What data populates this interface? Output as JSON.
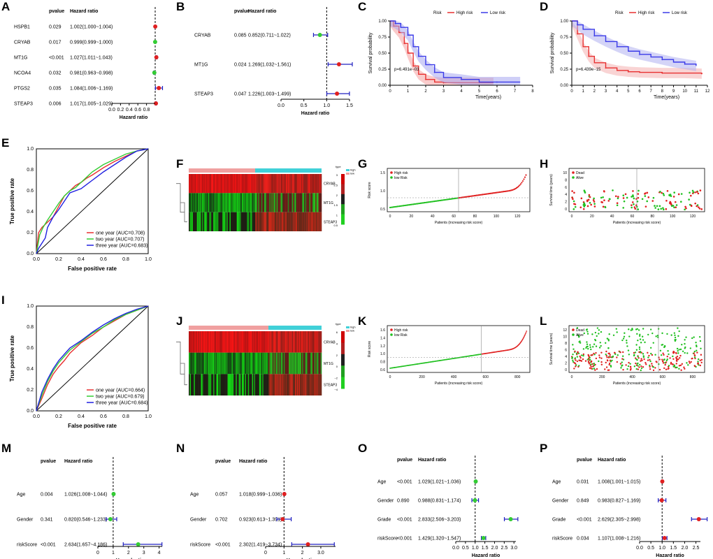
{
  "panels": {
    "A": "A",
    "B": "B",
    "C": "C",
    "D": "D",
    "E": "E",
    "F": "F",
    "G": "G",
    "H": "H",
    "I": "I",
    "J": "J",
    "K": "K",
    "L": "L",
    "M": "M",
    "N": "N",
    "O": "O",
    "P": "P"
  },
  "chart_data": [
    {
      "panel": "A",
      "type": "forest",
      "header_p": "pvalue",
      "header_hr": "Hazard ratio",
      "xlabel": "Hazard ratio",
      "xlim": [
        0,
        1.0
      ],
      "xticks": [
        "0.0",
        "0.2",
        "0.4",
        "0.6",
        "0.8"
      ],
      "ref": 1,
      "rows": [
        {
          "label": "HSPB1",
          "p": "0.029",
          "ci_text": "1.002(1.000~1.004)",
          "hr": 1.002,
          "lo": 1.0,
          "hi": 1.004,
          "color": "#e02020"
        },
        {
          "label": "CRYAB",
          "p": "0.017",
          "ci_text": "0.999(0.999~1.000)",
          "hr": 0.999,
          "lo": 0.999,
          "hi": 1.0,
          "color": "#33cc33"
        },
        {
          "label": "MT1G",
          "p": "<0.001",
          "ci_text": "1.027(1.011~1.043)",
          "hr": 1.027,
          "lo": 1.011,
          "hi": 1.043,
          "color": "#e02020"
        },
        {
          "label": "NCOA4",
          "p": "0.032",
          "ci_text": "0.981(0.963~0.998)",
          "hr": 0.981,
          "lo": 0.963,
          "hi": 0.998,
          "color": "#33cc33"
        },
        {
          "label": "PTGS2",
          "p": "0.035",
          "ci_text": "1.084(1.006~1.169)",
          "hr": 1.084,
          "lo": 1.006,
          "hi": 1.169,
          "color": "#e02020"
        },
        {
          "label": "STEAP3",
          "p": "0.006",
          "ci_text": "1.017(1.005~1.029)",
          "hr": 1.017,
          "lo": 1.005,
          "hi": 1.029,
          "color": "#e02020"
        }
      ]
    },
    {
      "panel": "B",
      "type": "forest",
      "header_p": "pvalue",
      "header_hr": "Hazard ratio",
      "xlabel": "Hazard ratio",
      "xlim": [
        0,
        1.5
      ],
      "xticks": [
        "0.0",
        "0.5",
        "1.0",
        "1.5"
      ],
      "ref": 1,
      "rows": [
        {
          "label": "CRYAB",
          "p": "0.085",
          "ci_text": "0.852(0.711~1.022)",
          "hr": 0.852,
          "lo": 0.711,
          "hi": 1.022,
          "color": "#33cc33"
        },
        {
          "label": "MT1G",
          "p": "0.024",
          "ci_text": "1.269(1.032~1.561)",
          "hr": 1.269,
          "lo": 1.032,
          "hi": 1.561,
          "color": "#e02020"
        },
        {
          "label": "STEAP3",
          "p": "0.047",
          "ci_text": "1.226(1.003~1.499)",
          "hr": 1.226,
          "lo": 1.003,
          "hi": 1.499,
          "color": "#e02020"
        }
      ]
    },
    {
      "panel": "C",
      "type": "survival",
      "legend_title": "Risk",
      "legend": [
        "High risk",
        "Low risk"
      ],
      "xlabel": "Time(years)",
      "ylabel": "Survival probability",
      "pvalue": "p=6.491e−03",
      "xlim": [
        0,
        8
      ],
      "ylim": [
        0,
        1
      ],
      "xticks": [
        "0",
        "1",
        "2",
        "3",
        "4",
        "5",
        "6",
        "7",
        "8"
      ],
      "yticks": [
        "0.00",
        "0.25",
        "0.50",
        "0.75",
        "1.00"
      ],
      "series": [
        {
          "name": "High risk",
          "color": "#e83030",
          "fill": "#f4a0a0",
          "x": [
            0,
            0.2,
            0.5,
            0.8,
            1.0,
            1.3,
            1.6,
            2.0,
            2.5,
            3.0,
            4.0,
            5.0,
            5.8
          ],
          "y": [
            1,
            0.92,
            0.82,
            0.65,
            0.5,
            0.3,
            0.17,
            0.09,
            0.05,
            0.04,
            0.04,
            0.04,
            0.04
          ]
        },
        {
          "name": "Low risk",
          "color": "#3a3ae8",
          "fill": "#a8a8f0",
          "x": [
            0,
            0.3,
            0.6,
            1.0,
            1.3,
            1.6,
            2.0,
            2.5,
            3.0,
            4.0,
            5.0,
            6.0,
            7.3
          ],
          "y": [
            1,
            0.96,
            0.9,
            0.78,
            0.6,
            0.45,
            0.32,
            0.2,
            0.12,
            0.09,
            0.05,
            0.05,
            0.05
          ]
        }
      ]
    },
    {
      "panel": "D",
      "type": "survival",
      "legend_title": "Risk",
      "legend": [
        "High risk",
        "Low risk"
      ],
      "xlabel": "Time(years)",
      "ylabel": "Survival probability",
      "pvalue": "p=6.439e−15",
      "xlim": [
        0,
        12
      ],
      "ylim": [
        0,
        1
      ],
      "xticks": [
        "0",
        "1",
        "2",
        "3",
        "4",
        "5",
        "6",
        "7",
        "8",
        "9",
        "10",
        "11",
        "12"
      ],
      "yticks": [
        "0.00",
        "0.25",
        "0.50",
        "0.75",
        "1.00"
      ],
      "series": [
        {
          "name": "High risk",
          "color": "#e83030",
          "fill": "#f4b0b0",
          "x": [
            0,
            0.5,
            1,
            1.5,
            2,
            3,
            4,
            5,
            6,
            8,
            10,
            11.5
          ],
          "y": [
            1,
            0.8,
            0.6,
            0.45,
            0.35,
            0.27,
            0.23,
            0.21,
            0.2,
            0.19,
            0.19,
            0.18
          ]
        },
        {
          "name": "Low risk",
          "color": "#3a3ae8",
          "fill": "#b0b0f0",
          "x": [
            0,
            0.5,
            1,
            2,
            3,
            4,
            5,
            6,
            7,
            8,
            9,
            10,
            11
          ],
          "y": [
            1,
            0.94,
            0.87,
            0.77,
            0.68,
            0.6,
            0.53,
            0.48,
            0.44,
            0.4,
            0.36,
            0.33,
            0.3
          ]
        }
      ]
    },
    {
      "panel": "E",
      "type": "roc",
      "xlabel": "False positive rate",
      "ylabel": "True positive rate",
      "ticks": [
        "0.0",
        "0.2",
        "0.4",
        "0.6",
        "0.8",
        "1.0"
      ],
      "series": [
        {
          "name": "one year (AUC=0.708)",
          "color": "#e83030",
          "x": [
            0,
            0.02,
            0.05,
            0.1,
            0.15,
            0.2,
            0.25,
            0.3,
            0.35,
            0.4,
            0.45,
            0.5,
            0.6,
            0.7,
            0.8,
            0.9,
            1
          ],
          "y": [
            0,
            0.2,
            0.25,
            0.3,
            0.35,
            0.45,
            0.55,
            0.6,
            0.65,
            0.68,
            0.72,
            0.75,
            0.82,
            0.88,
            0.93,
            0.98,
            1
          ]
        },
        {
          "name": "two year (AUC=0.707)",
          "color": "#33cc33",
          "x": [
            0,
            0.03,
            0.06,
            0.1,
            0.15,
            0.2,
            0.25,
            0.3,
            0.35,
            0.4,
            0.5,
            0.6,
            0.7,
            0.8,
            0.9,
            1
          ],
          "y": [
            0,
            0.18,
            0.25,
            0.32,
            0.4,
            0.48,
            0.55,
            0.6,
            0.63,
            0.68,
            0.78,
            0.85,
            0.9,
            0.95,
            0.98,
            1
          ]
        },
        {
          "name": "three year (AUC=0.683)",
          "color": "#2020e0",
          "x": [
            0,
            0.02,
            0.05,
            0.08,
            0.1,
            0.15,
            0.2,
            0.25,
            0.3,
            0.4,
            0.5,
            0.6,
            0.7,
            0.8,
            0.9,
            1
          ],
          "y": [
            0,
            0.05,
            0.1,
            0.15,
            0.25,
            0.35,
            0.42,
            0.5,
            0.58,
            0.62,
            0.7,
            0.78,
            0.85,
            0.92,
            0.98,
            1
          ]
        }
      ]
    },
    {
      "panel": "F",
      "type": "heatmap",
      "rows": [
        "CRYAB",
        "MT1G",
        "STEAP3"
      ],
      "legend_title": "type",
      "legend": [
        "high",
        "low"
      ],
      "scale": [
        "3",
        "2.5",
        "2",
        "1.5",
        "1",
        "0.5"
      ]
    },
    {
      "panel": "G",
      "type": "scatter",
      "legend": [
        "High risk",
        "low Risk"
      ],
      "xlabel": "Patients (increasing risk score)",
      "ylabel": "Risk score",
      "xticks": [
        "0",
        "20",
        "40",
        "60",
        "80",
        "100",
        "120"
      ],
      "yticks": [
        "0.5",
        "1.0",
        "1.5"
      ],
      "n": 130,
      "cut": 65
    },
    {
      "panel": "H",
      "type": "scatter",
      "legend": [
        "Dead",
        "Alive"
      ],
      "xlabel": "Patients (increasing risk score)",
      "ylabel": "Survival time (years)",
      "xticks": [
        "0",
        "20",
        "40",
        "60",
        "80",
        "100",
        "120"
      ],
      "yticks": [
        "0",
        "2",
        "4",
        "6",
        "8",
        "10"
      ],
      "n": 130,
      "cut": 65
    },
    {
      "panel": "I",
      "type": "roc",
      "xlabel": "False positive rate",
      "ylabel": "True positive rate",
      "ticks": [
        "0.0",
        "0.2",
        "0.4",
        "0.6",
        "0.8",
        "1.0"
      ],
      "series": [
        {
          "name": "one year (AUC=0.664)",
          "color": "#e83030",
          "x": [
            0,
            0.05,
            0.1,
            0.15,
            0.2,
            0.25,
            0.3,
            0.35,
            0.4,
            0.5,
            0.6,
            0.7,
            0.8,
            0.9,
            1
          ],
          "y": [
            0,
            0.12,
            0.25,
            0.35,
            0.42,
            0.48,
            0.55,
            0.6,
            0.65,
            0.72,
            0.8,
            0.86,
            0.92,
            0.96,
            1
          ]
        },
        {
          "name": "two year (AUC=0.679)",
          "color": "#33cc33",
          "x": [
            0,
            0.05,
            0.1,
            0.15,
            0.2,
            0.25,
            0.3,
            0.4,
            0.5,
            0.6,
            0.7,
            0.8,
            0.9,
            1
          ],
          "y": [
            0,
            0.15,
            0.28,
            0.38,
            0.46,
            0.52,
            0.58,
            0.66,
            0.74,
            0.8,
            0.87,
            0.92,
            0.96,
            1
          ]
        },
        {
          "name": "three year (AUC=0.684)",
          "color": "#2020e0",
          "x": [
            0,
            0.05,
            0.1,
            0.15,
            0.2,
            0.25,
            0.3,
            0.4,
            0.5,
            0.6,
            0.7,
            0.8,
            0.9,
            1
          ],
          "y": [
            0,
            0.18,
            0.3,
            0.4,
            0.48,
            0.54,
            0.6,
            0.67,
            0.75,
            0.82,
            0.88,
            0.93,
            0.97,
            1
          ]
        }
      ]
    },
    {
      "panel": "J",
      "type": "heatmap",
      "rows": [
        "CRYAB",
        "MT1G",
        "STEAP3"
      ],
      "legend_title": "type",
      "legend": [
        "high",
        "low"
      ],
      "scale": [
        "6",
        "4",
        "2",
        "0",
        "−2",
        "−4"
      ]
    },
    {
      "panel": "K",
      "type": "scatter",
      "legend": [
        "High risk",
        "low Risk"
      ],
      "xlabel": "Patients (increasing risk score)",
      "ylabel": "Risk score",
      "xticks": [
        "0",
        "200",
        "400",
        "600",
        "800"
      ],
      "yticks": [
        "0.6",
        "0.8",
        "1.0",
        "1.2",
        "1.4",
        "1.6"
      ],
      "n": 900,
      "cut": 600
    },
    {
      "panel": "L",
      "type": "scatter",
      "legend": [
        "Dead",
        "Alive"
      ],
      "xlabel": "Patients (increasing risk score)",
      "ylabel": "Survival time (years)",
      "xticks": [
        "0",
        "200",
        "400",
        "600",
        "800"
      ],
      "yticks": [
        "0",
        "2",
        "4",
        "6",
        "8",
        "10",
        "12"
      ],
      "n": 900,
      "cut": 600
    },
    {
      "panel": "M",
      "type": "forest",
      "header_p": "pvalue",
      "header_hr": "Hazard ratio",
      "xlabel": "Hazard ratio",
      "xlim": [
        0,
        4.2
      ],
      "xticks": [
        "0",
        "1",
        "2",
        "3",
        "4"
      ],
      "ref": 1,
      "rows": [
        {
          "label": "Age",
          "p": "0.004",
          "ci_text": "1.026(1.008~1.044)",
          "hr": 1.026,
          "lo": 1.008,
          "hi": 1.044,
          "color": "#33cc33"
        },
        {
          "label": "Gender",
          "p": "0.341",
          "ci_text": "0.820(0.546~1.233)",
          "hr": 0.82,
          "lo": 0.546,
          "hi": 1.233,
          "color": "#33cc33"
        },
        {
          "label": "riskScore",
          "p": "<0.001",
          "ci_text": "2.634(1.657~4.186)",
          "hr": 2.634,
          "lo": 1.657,
          "hi": 4.186,
          "color": "#33cc33"
        }
      ]
    },
    {
      "panel": "N",
      "type": "forest",
      "header_p": "pvalue",
      "header_hr": "Hazard ratio",
      "xlabel": "Hazard ratio",
      "xlim": [
        0,
        3.8
      ],
      "xticks": [
        "0",
        "1",
        "2",
        "3.0"
      ],
      "ref": 1,
      "rows": [
        {
          "label": "Age",
          "p": "0.057",
          "ci_text": "1.018(0.999~1.036)",
          "hr": 1.018,
          "lo": 0.999,
          "hi": 1.036,
          "color": "#e02020"
        },
        {
          "label": "Gender",
          "p": "0.702",
          "ci_text": "0.923(0.613~1.391)",
          "hr": 0.923,
          "lo": 0.613,
          "hi": 1.391,
          "color": "#e02020"
        },
        {
          "label": "riskScore",
          "p": "<0.001",
          "ci_text": "2.302(1.419~3.734)",
          "hr": 2.302,
          "lo": 1.419,
          "hi": 3.734,
          "color": "#e02020"
        }
      ]
    },
    {
      "panel": "O",
      "type": "forest",
      "header_p": "pvalue",
      "header_hr": "Hazard ratio",
      "xlabel": "Hazard ratio",
      "xlim": [
        0,
        3.1
      ],
      "xticks": [
        "0.0",
        "0.5",
        "1.0",
        "1.5",
        "2.0",
        "2.5",
        "3.0"
      ],
      "ref": 1,
      "rows": [
        {
          "label": "Age",
          "p": "<0.001",
          "ci_text": "1.029(1.021~1.036)",
          "hr": 1.029,
          "lo": 1.021,
          "hi": 1.036,
          "color": "#33cc33"
        },
        {
          "label": "Gender",
          "p": "0.890",
          "ci_text": "0.988(0.831~1.174)",
          "hr": 0.988,
          "lo": 0.831,
          "hi": 1.174,
          "color": "#33cc33"
        },
        {
          "label": "Grade",
          "p": "<0.001",
          "ci_text": "2.833(2.506~3.203)",
          "hr": 2.833,
          "lo": 2.506,
          "hi": 3.203,
          "color": "#33cc33"
        },
        {
          "label": "riskScore",
          "p": "<0.001",
          "ci_text": "1.429(1.320~1.547)",
          "hr": 1.429,
          "lo": 1.32,
          "hi": 1.547,
          "color": "#33cc33"
        }
      ]
    },
    {
      "panel": "P",
      "type": "forest",
      "header_p": "pvalue",
      "header_hr": "Hazard ratio",
      "xlabel": "Hazard ratio",
      "xlim": [
        0,
        2.7
      ],
      "xticks": [
        "0.0",
        "0.5",
        "1.0",
        "1.5",
        "2.0",
        "2.5"
      ],
      "ref": 1,
      "rows": [
        {
          "label": "Age",
          "p": "0.031",
          "ci_text": "1.008(1.001~1.015)",
          "hr": 1.008,
          "lo": 1.001,
          "hi": 1.015,
          "color": "#e02020"
        },
        {
          "label": "Gender",
          "p": "0.849",
          "ci_text": "0.983(0.827~1.169)",
          "hr": 0.983,
          "lo": 0.827,
          "hi": 1.169,
          "color": "#e02020"
        },
        {
          "label": "Grade",
          "p": "<0.001",
          "ci_text": "2.629(2.305~2.998)",
          "hr": 2.629,
          "lo": 2.305,
          "hi": 2.998,
          "color": "#e02020"
        },
        {
          "label": "riskScore",
          "p": "0.034",
          "ci_text": "1.107(1.008~1.216)",
          "hr": 1.107,
          "lo": 1.008,
          "hi": 1.216,
          "color": "#e02020"
        }
      ]
    }
  ]
}
